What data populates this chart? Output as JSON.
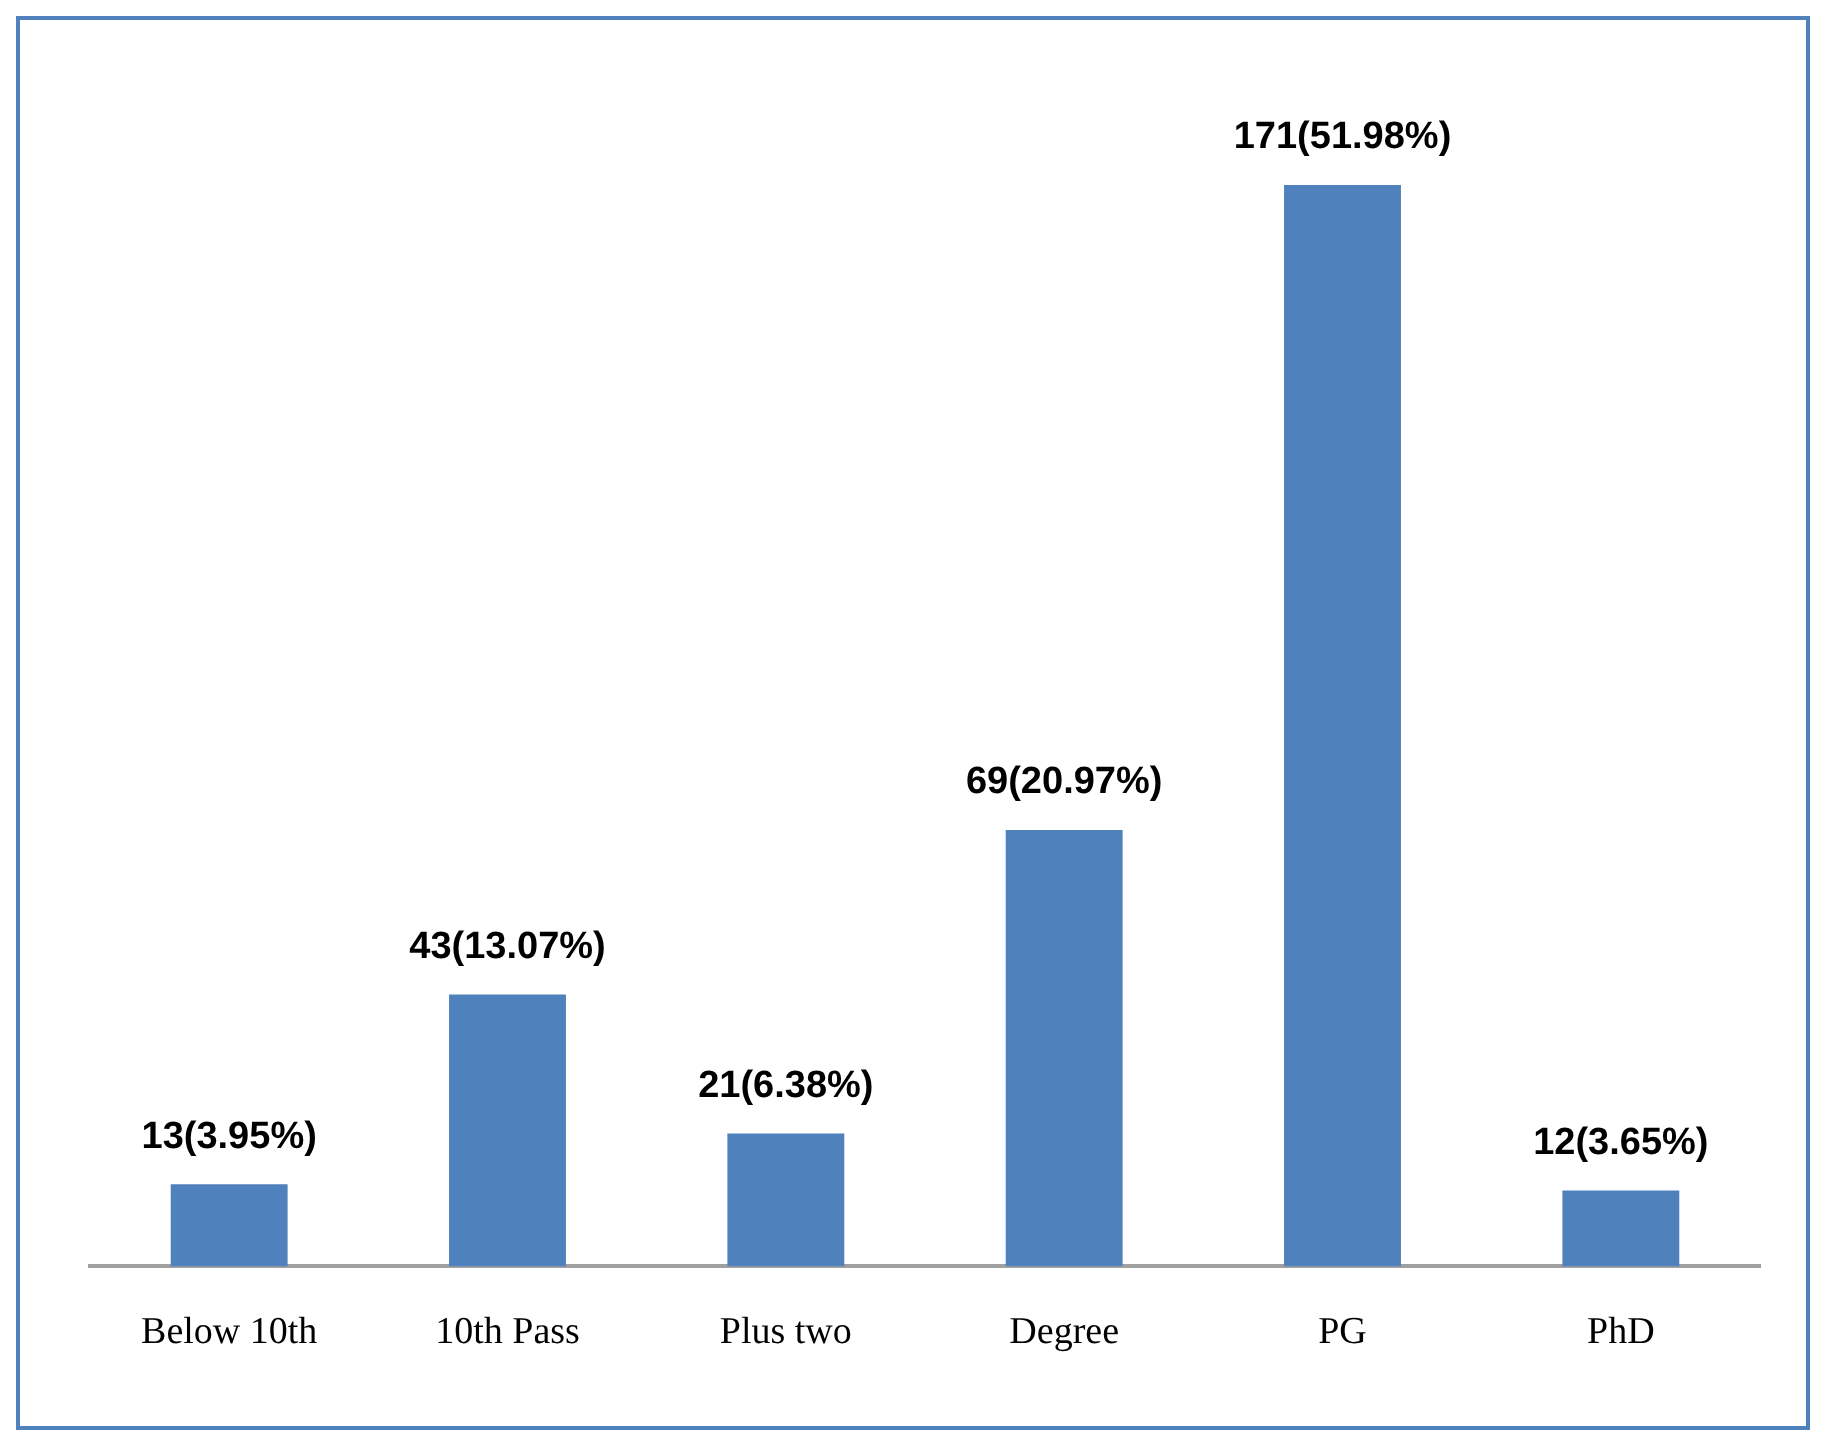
{
  "chart_data": {
    "type": "bar",
    "categories": [
      "Below 10th",
      "10th Pass",
      "Plus two",
      "Degree",
      "PG",
      "PhD"
    ],
    "values": [
      13,
      43,
      21,
      69,
      171,
      12
    ],
    "value_labels": [
      "13(3.95%)",
      "43(13.07%)",
      "21(6.38%)",
      "69(20.97%)",
      "171(51.98%)",
      "12(3.65%)"
    ],
    "color": "#4f81bd",
    "grid": false,
    "legend": false
  }
}
